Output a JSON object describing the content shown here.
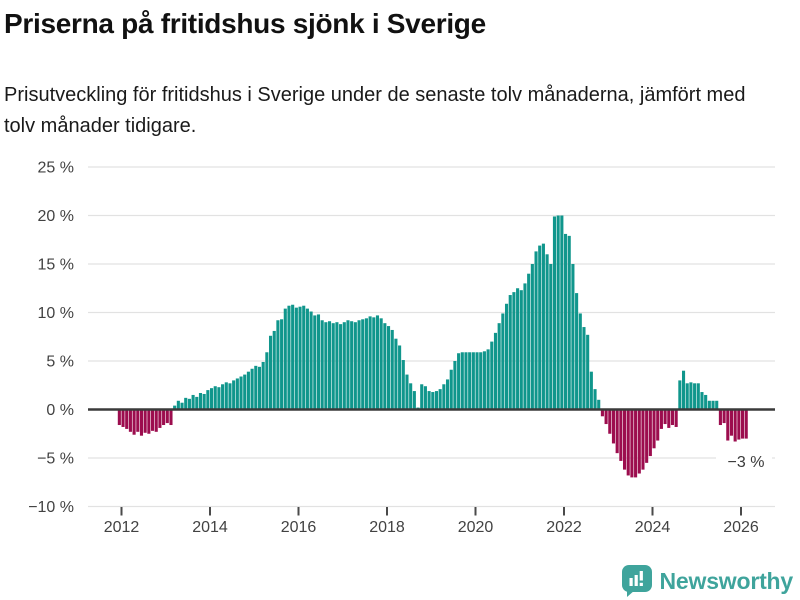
{
  "header": {
    "title": "Priserna på fritidshus sjönk i Sverige",
    "subtitle": "Prisutveckling för fritidshus i Sverige under de senaste tolv månaderna, jämfört med tolv månader tidigare."
  },
  "chart_data": {
    "type": "bar",
    "title": "Priserna på fritidshus sjönk i Sverige",
    "subtitle": "Prisutveckling för fritidshus i Sverige under de senaste tolv månaderna, jämfört med tolv månader tidigare.",
    "unit": "%",
    "frequency": "monthly",
    "start_month": "2011-12",
    "end_month": "2026-02",
    "xlabel": "",
    "ylabel": "",
    "ylim": [
      -10,
      25
    ],
    "grid": true,
    "legend": null,
    "yticks": [
      {
        "value": 25,
        "label": "25 %"
      },
      {
        "value": 20,
        "label": "20 %"
      },
      {
        "value": 15,
        "label": "15 %"
      },
      {
        "value": 10,
        "label": "10 %"
      },
      {
        "value": 5,
        "label": "5 %"
      },
      {
        "value": 0,
        "label": "0 %"
      },
      {
        "value": -5,
        "label": "−5 %"
      },
      {
        "value": -10,
        "label": "−10 %"
      }
    ],
    "xticks": [
      {
        "year": 2012,
        "label": "2012"
      },
      {
        "year": 2014,
        "label": "2014"
      },
      {
        "year": 2016,
        "label": "2016"
      },
      {
        "year": 2018,
        "label": "2018"
      },
      {
        "year": 2020,
        "label": "2020"
      },
      {
        "year": 2022,
        "label": "2022"
      },
      {
        "year": 2024,
        "label": "2024"
      },
      {
        "year": 2026,
        "label": "2026"
      }
    ],
    "values": [
      -1.6,
      -1.8,
      -2.0,
      -2.3,
      -2.6,
      -2.3,
      -2.7,
      -2.4,
      -2.5,
      -2.2,
      -2.3,
      -1.9,
      -1.6,
      -1.4,
      -1.6,
      0.4,
      0.9,
      0.7,
      1.2,
      1.1,
      1.5,
      1.3,
      1.7,
      1.6,
      2.0,
      2.2,
      2.4,
      2.3,
      2.6,
      2.8,
      2.7,
      3.0,
      3.2,
      3.4,
      3.6,
      3.9,
      4.2,
      4.5,
      4.4,
      4.9,
      5.9,
      7.6,
      8.1,
      9.2,
      9.3,
      10.4,
      10.7,
      10.8,
      10.5,
      10.6,
      10.7,
      10.4,
      10.1,
      9.7,
      9.8,
      9.2,
      9.0,
      9.1,
      8.9,
      9.0,
      8.8,
      9.0,
      9.2,
      9.1,
      9.0,
      9.2,
      9.3,
      9.4,
      9.6,
      9.5,
      9.7,
      9.4,
      8.9,
      8.6,
      8.2,
      7.3,
      6.6,
      5.1,
      3.6,
      2.7,
      1.9,
      0.2,
      2.6,
      2.4,
      1.9,
      1.8,
      1.9,
      2.1,
      2.6,
      3.1,
      4.1,
      5.0,
      5.8,
      5.9,
      5.9,
      5.9,
      5.9,
      5.9,
      5.9,
      6.0,
      6.2,
      7.0,
      7.9,
      8.9,
      9.9,
      10.9,
      11.8,
      12.1,
      12.5,
      12.3,
      13.0,
      14.0,
      15.0,
      16.3,
      16.9,
      17.1,
      16.0,
      15.0,
      19.9,
      20.0,
      20.0,
      18.1,
      17.9,
      15.0,
      12.0,
      9.9,
      8.5,
      7.7,
      3.9,
      2.1,
      1.0,
      -0.7,
      -1.5,
      -2.5,
      -3.5,
      -4.5,
      -5.3,
      -6.2,
      -6.8,
      -7.0,
      -7.0,
      -6.6,
      -6.2,
      -5.5,
      -4.8,
      -4.0,
      -3.2,
      -2.0,
      -1.5,
      -1.9,
      -1.6,
      -1.8,
      3.0,
      4.0,
      2.7,
      2.8,
      2.7,
      2.7,
      1.8,
      1.5,
      0.9,
      0.9,
      0.9,
      -1.6,
      -1.4,
      -3.2,
      -2.7,
      -3.3,
      -3.1,
      -3.0,
      -3.0
    ],
    "annotation": {
      "text": "−3 %",
      "value": -3
    },
    "colors": {
      "positive": "#10968C",
      "negative": "#9C0D4E",
      "gridline": "#e2e2e2",
      "zero_line": "#3a3a3a",
      "tick": "#4a4a4a",
      "axis_text": "#424242"
    }
  },
  "footer": {
    "brand": "Newsworthy",
    "logo_color": "#3FA49C"
  }
}
